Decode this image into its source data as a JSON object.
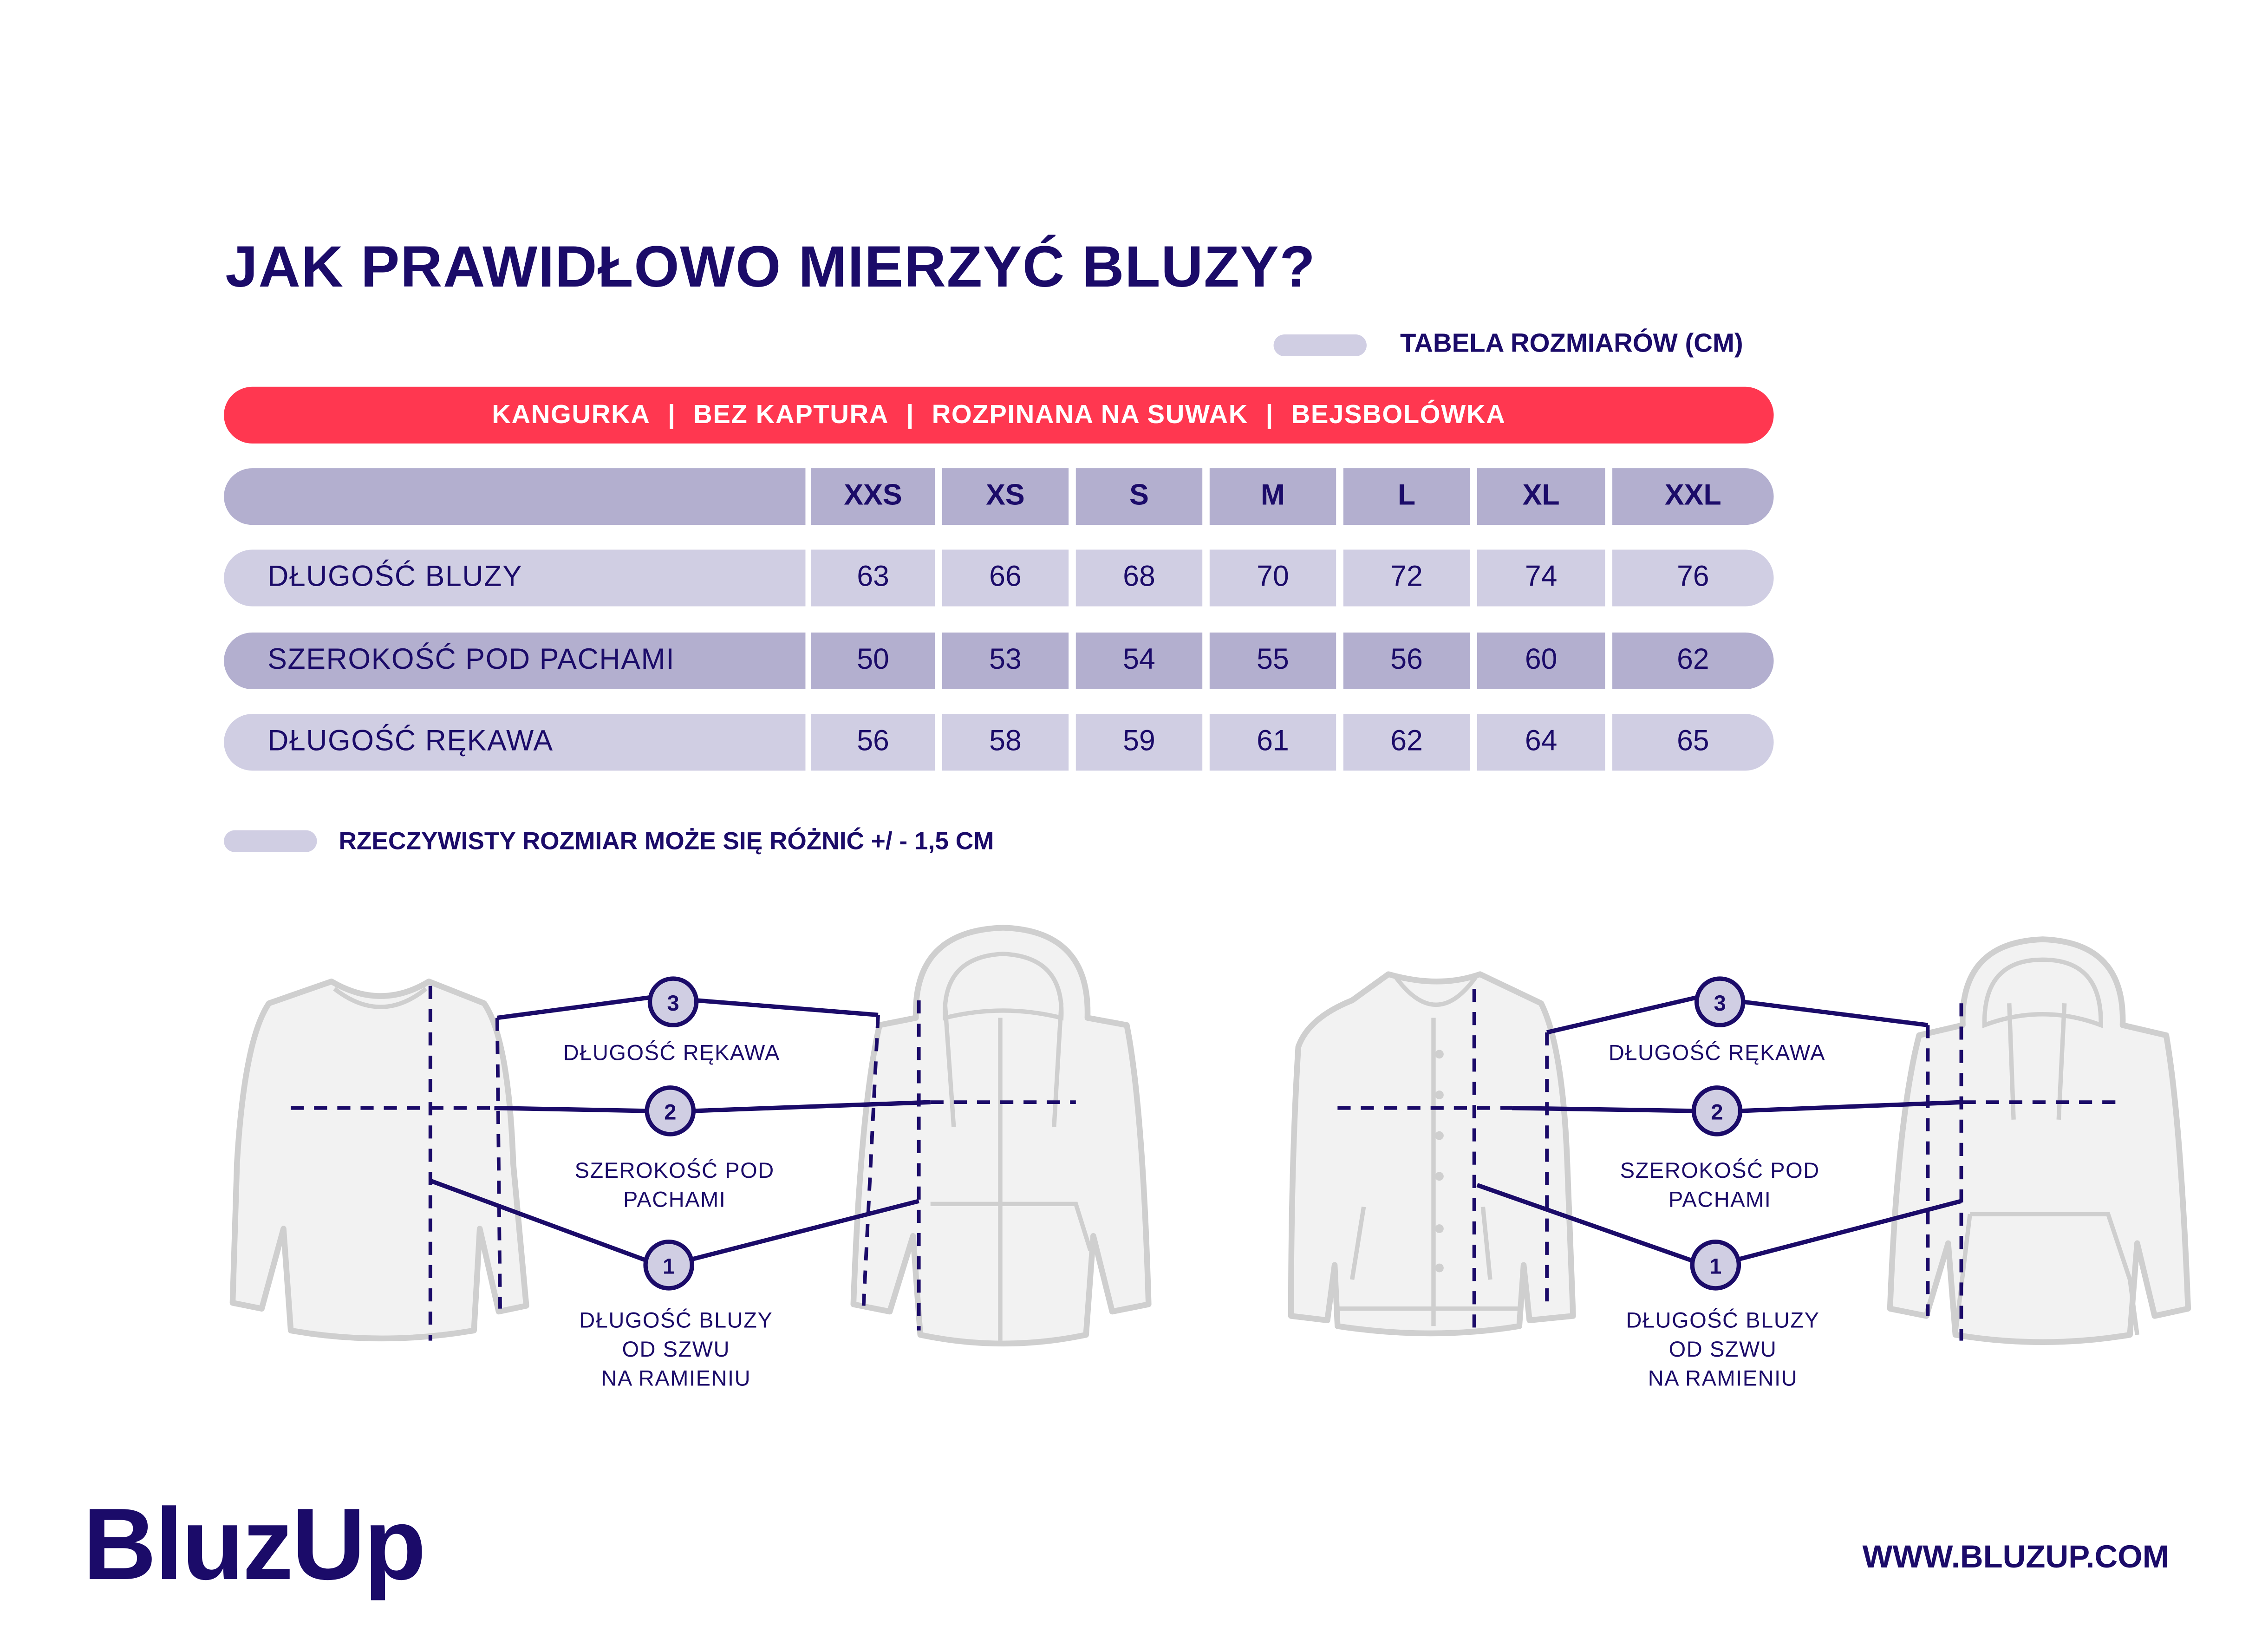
{
  "title": "JAK PRAWIDŁOWO MIERZYĆ BLUZY?",
  "legend_label": "TABELA ROZMIARÓW (CM)",
  "categories": [
    "KANGURKA",
    "BEZ KAPTURA",
    "ROZPINANA NA SUWAK",
    "BEJSBOLÓWKA"
  ],
  "category_separator": "|",
  "table": {
    "sizes": [
      "XXS",
      "XS",
      "S",
      "M",
      "L",
      "XL",
      "XXL"
    ],
    "rows": [
      {
        "label": "DŁUGOŚĆ BLUZY",
        "values": [
          "63",
          "66",
          "68",
          "70",
          "72",
          "74",
          "76"
        ]
      },
      {
        "label": "SZEROKOŚĆ POD PACHAMI",
        "values": [
          "50",
          "53",
          "54",
          "55",
          "56",
          "60",
          "62"
        ]
      },
      {
        "label": "DŁUGOŚĆ RĘKAWA",
        "values": [
          "56",
          "58",
          "59",
          "61",
          "62",
          "64",
          "65"
        ]
      }
    ]
  },
  "note": "RZECZYWISTY ROZMIAR MOŻE SIĘ RÓŻNIĆ +/ - 1,5 CM",
  "diagram": {
    "markers": [
      "1",
      "2",
      "3"
    ],
    "sleeve_label": "DŁUGOŚĆ RĘKAWA",
    "chest_label_1": "SZEROKOŚĆ POD",
    "chest_label_2": "PACHAMI",
    "length_label_1": "DŁUGOŚĆ BLUZY",
    "length_label_2": "OD SZWU",
    "length_label_3": "NA RAMIENIU"
  },
  "brand": "BluzUp",
  "url": "WWW.BLUZUP.COM",
  "colors": {
    "navy": "#1b0b69",
    "accent_red": "#ff3750",
    "row_dark": "#b3afcf",
    "row_light": "#d0cee3",
    "garment": "#f2f2f2"
  }
}
